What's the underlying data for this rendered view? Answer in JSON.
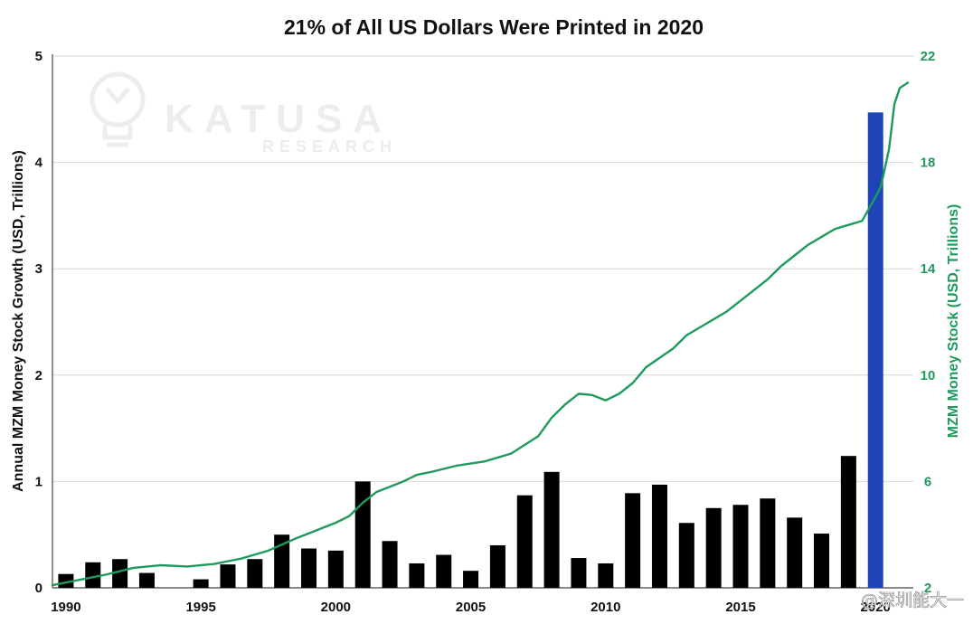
{
  "chart_data": {
    "type": "bar+line",
    "title": "21% of All US Dollars Were Printed in 2020",
    "ylabel_left": "Annual MZM Money Stock Growth (USD, Trillions)",
    "ylabel_right": "MZM Money Stock (USD, Trillions)",
    "ylim_left": [
      0,
      5
    ],
    "ylim_right": [
      2,
      22
    ],
    "yticks_left": [
      "0",
      "1",
      "2",
      "3",
      "4",
      "5"
    ],
    "yticks_right": [
      "2",
      "6",
      "10",
      "14",
      "18",
      "22"
    ],
    "xticks": [
      "1990",
      "1995",
      "2000",
      "2005",
      "2010",
      "2015",
      "2020"
    ],
    "grid": "horizontal",
    "bars": {
      "name": "Annual MZM Money Stock Growth",
      "years": [
        1990,
        1991,
        1992,
        1993,
        1994,
        1995,
        1996,
        1997,
        1998,
        1999,
        2000,
        2001,
        2002,
        2003,
        2004,
        2005,
        2006,
        2007,
        2008,
        2009,
        2010,
        2011,
        2012,
        2013,
        2014,
        2015,
        2016,
        2017,
        2018,
        2019,
        2020
      ],
      "values": [
        0.13,
        0.24,
        0.27,
        0.14,
        0.0,
        0.08,
        0.22,
        0.27,
        0.5,
        0.37,
        0.35,
        1.0,
        0.44,
        0.23,
        0.31,
        0.16,
        0.4,
        0.87,
        1.09,
        0.28,
        0.23,
        0.89,
        0.97,
        0.61,
        0.75,
        0.78,
        0.84,
        0.66,
        0.51,
        1.24,
        4.47
      ],
      "color": "#000000",
      "highlight_color": "#1f44b8",
      "highlight_year": 2020
    },
    "line": {
      "name": "MZM Money Stock",
      "color": "#1e9a5c",
      "points": [
        [
          1989.5,
          2.1
        ],
        [
          1990.5,
          2.3
        ],
        [
          1991.5,
          2.5
        ],
        [
          1992.5,
          2.75
        ],
        [
          1993.5,
          2.85
        ],
        [
          1994.5,
          2.8
        ],
        [
          1995.5,
          2.9
        ],
        [
          1996.5,
          3.1
        ],
        [
          1997.5,
          3.4
        ],
        [
          1998.5,
          3.85
        ],
        [
          1999.5,
          4.25
        ],
        [
          2000.0,
          4.45
        ],
        [
          2000.5,
          4.7
        ],
        [
          2001.0,
          5.2
        ],
        [
          2001.5,
          5.6
        ],
        [
          2002.5,
          6.0
        ],
        [
          2003.0,
          6.25
        ],
        [
          2003.5,
          6.35
        ],
        [
          2004.5,
          6.6
        ],
        [
          2005.5,
          6.75
        ],
        [
          2006.5,
          7.05
        ],
        [
          2007.5,
          7.7
        ],
        [
          2008.0,
          8.4
        ],
        [
          2008.5,
          8.9
        ],
        [
          2009.0,
          9.3
        ],
        [
          2009.5,
          9.25
        ],
        [
          2010.0,
          9.05
        ],
        [
          2010.5,
          9.3
        ],
        [
          2011.0,
          9.7
        ],
        [
          2011.5,
          10.3
        ],
        [
          2012.5,
          11.0
        ],
        [
          2013.0,
          11.5
        ],
        [
          2013.5,
          11.8
        ],
        [
          2014.5,
          12.4
        ],
        [
          2015.5,
          13.2
        ],
        [
          2016.0,
          13.6
        ],
        [
          2016.5,
          14.1
        ],
        [
          2017.0,
          14.5
        ],
        [
          2017.5,
          14.9
        ],
        [
          2018.0,
          15.2
        ],
        [
          2018.5,
          15.5
        ],
        [
          2019.0,
          15.65
        ],
        [
          2019.5,
          15.8
        ],
        [
          2020.0,
          16.7
        ],
        [
          2020.2,
          17.1
        ],
        [
          2020.5,
          18.5
        ],
        [
          2020.7,
          20.2
        ],
        [
          2020.9,
          20.8
        ],
        [
          2021.2,
          21.0
        ]
      ]
    }
  },
  "watermark": {
    "brand": "KATUSA",
    "sub": "RESEARCH"
  },
  "credit": "@深圳能大一"
}
